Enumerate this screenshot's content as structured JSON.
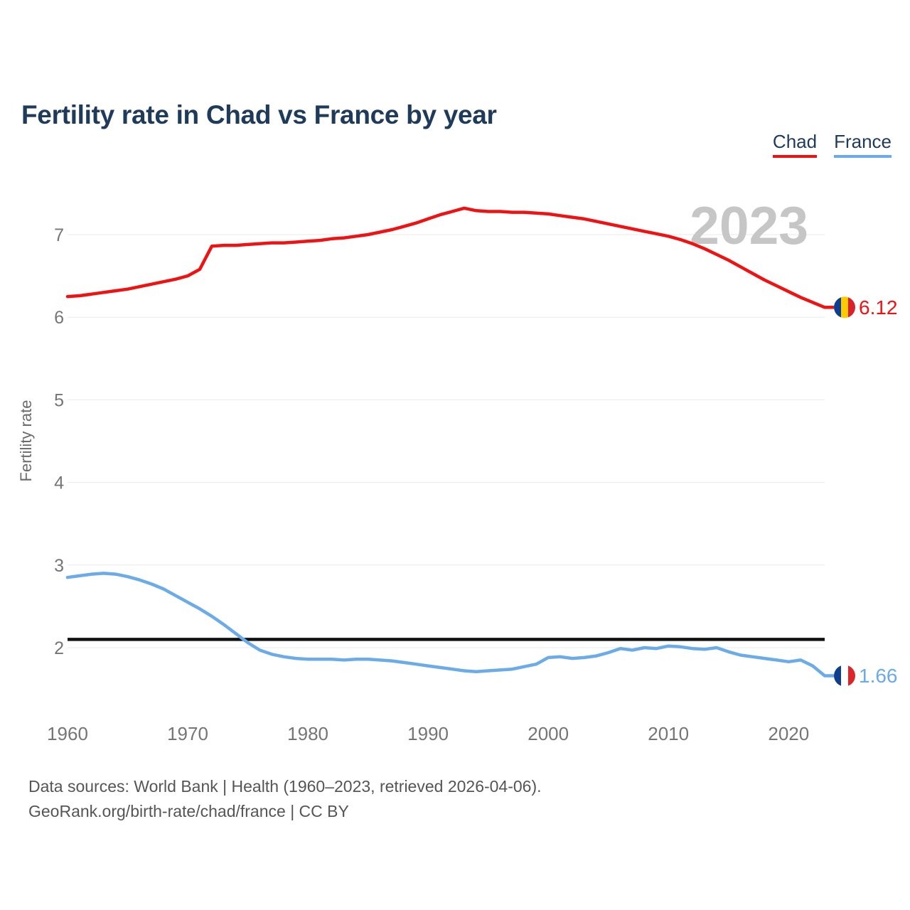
{
  "title": "Fertility rate in Chad vs France by year",
  "legend": [
    {
      "label": "Chad",
      "color": "#f01212"
    },
    {
      "label": "France",
      "color": "#6aabe8"
    }
  ],
  "watermark_year": "2023",
  "footer": {
    "line1": "Data sources: World Bank | Health (1960–2023, retrieved 2026-04-06).",
    "line2": "GeoRank.org/birth-rate/chad/france | CC BY"
  },
  "chart_data": {
    "type": "line",
    "title": "Fertility rate in Chad vs France by year",
    "xlabel": "",
    "ylabel": "Fertility rate",
    "x_start": 1960,
    "x_step": 1,
    "x_range": [
      1960,
      2023
    ],
    "x_ticks": [
      1960,
      1970,
      1980,
      1990,
      2000,
      2010,
      2020
    ],
    "y_ticks": [
      2,
      3,
      4,
      5,
      6,
      7
    ],
    "ylim": [
      1.5,
      7.6
    ],
    "grid": "horizontal",
    "legend_position": "top-right",
    "reference_line": {
      "value": 2.1,
      "color": "#111111"
    },
    "series": [
      {
        "name": "Chad",
        "color": "#f01212",
        "end_value_label": "6.12",
        "flag_colors": [
          "#0b3e91",
          "#fecb00",
          "#d9222d"
        ],
        "values": [
          6.25,
          6.26,
          6.28,
          6.3,
          6.32,
          6.34,
          6.37,
          6.4,
          6.43,
          6.46,
          6.5,
          6.58,
          6.86,
          6.87,
          6.87,
          6.88,
          6.89,
          6.9,
          6.9,
          6.91,
          6.92,
          6.93,
          6.95,
          6.96,
          6.98,
          7.0,
          7.03,
          7.06,
          7.1,
          7.14,
          7.19,
          7.24,
          7.28,
          7.32,
          7.29,
          7.28,
          7.28,
          7.27,
          7.27,
          7.26,
          7.25,
          7.23,
          7.21,
          7.19,
          7.16,
          7.13,
          7.1,
          7.07,
          7.04,
          7.01,
          6.98,
          6.94,
          6.89,
          6.83,
          6.76,
          6.69,
          6.61,
          6.53,
          6.45,
          6.38,
          6.31,
          6.24,
          6.18,
          6.12
        ]
      },
      {
        "name": "France",
        "color": "#6aabe8",
        "end_value_label": "1.66",
        "flag_colors": [
          "#0f3e8f",
          "#ffffff",
          "#dc242c"
        ],
        "values": [
          2.85,
          2.87,
          2.89,
          2.9,
          2.89,
          2.86,
          2.82,
          2.77,
          2.71,
          2.63,
          2.55,
          2.47,
          2.38,
          2.28,
          2.17,
          2.06,
          1.97,
          1.92,
          1.89,
          1.87,
          1.86,
          1.86,
          1.86,
          1.85,
          1.86,
          1.86,
          1.85,
          1.84,
          1.82,
          1.8,
          1.78,
          1.76,
          1.74,
          1.72,
          1.71,
          1.72,
          1.73,
          1.74,
          1.77,
          1.8,
          1.88,
          1.89,
          1.87,
          1.88,
          1.9,
          1.94,
          1.99,
          1.97,
          2.0,
          1.99,
          2.02,
          2.01,
          1.99,
          1.98,
          2.0,
          1.95,
          1.91,
          1.89,
          1.87,
          1.85,
          1.83,
          1.85,
          1.78,
          1.66
        ]
      }
    ]
  }
}
